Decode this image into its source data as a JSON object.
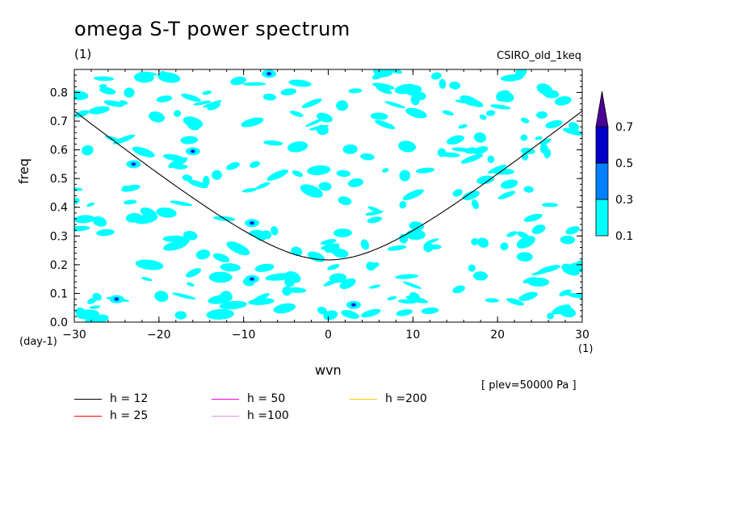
{
  "title": "omega S-T power spectrum",
  "subtitle_left": "(1)",
  "subtitle_right": "CSIRO_old_1keq",
  "note": "[ plev=50000 Pa ]",
  "chart_data": {
    "type": "contour",
    "title": "omega S-T power spectrum",
    "xlabel": "wvn",
    "ylabel": "freq",
    "x_unit": "(1)",
    "y_unit": "(day-1)",
    "xlim": [
      -30,
      30
    ],
    "ylim": [
      0,
      0.88
    ],
    "x_ticks": [
      -30,
      -20,
      -10,
      0,
      10,
      20,
      30
    ],
    "y_ticks": [
      0.0,
      0.1,
      0.2,
      0.3,
      0.4,
      0.5,
      0.6,
      0.7,
      0.8
    ],
    "colorbar": {
      "levels": [
        "0.1",
        "0.3",
        "0.5",
        "0.7"
      ],
      "colors": [
        "#00ffff",
        "#0080ff",
        "#0000c8",
        "#4b0096"
      ]
    },
    "dispersion_curves": [
      {
        "name": "h = 12",
        "h": 12,
        "color": "#000000"
      },
      {
        "name": "h = 25",
        "h": 25,
        "color": "#ff0000"
      },
      {
        "name": "h = 50",
        "h": 50,
        "color": "#ff00c8"
      },
      {
        "name": "h =100",
        "h": 100,
        "color": "#e696e6"
      },
      {
        "name": "h =200",
        "h": 200,
        "color": "#ffc800"
      }
    ]
  }
}
